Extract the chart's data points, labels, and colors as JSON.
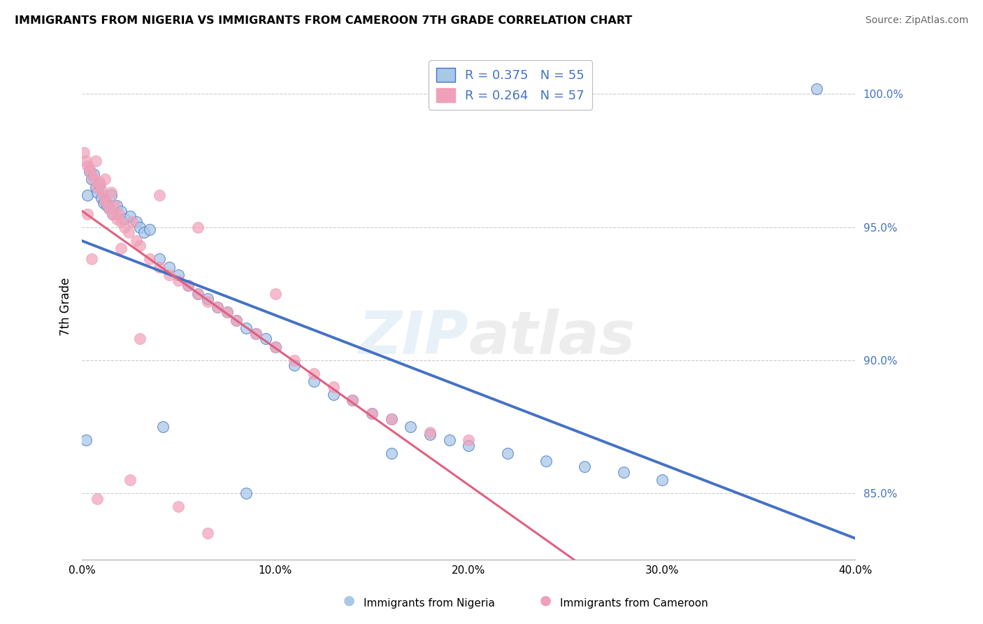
{
  "title": "IMMIGRANTS FROM NIGERIA VS IMMIGRANTS FROM CAMEROON 7TH GRADE CORRELATION CHART",
  "source": "Source: ZipAtlas.com",
  "ylabel": "7th Grade",
  "xlim": [
    0.0,
    40.0
  ],
  "ylim": [
    82.5,
    101.5
  ],
  "legend_nigeria": "Immigrants from Nigeria",
  "legend_cameroon": "Immigrants from Cameroon",
  "R_nigeria": 0.375,
  "N_nigeria": 55,
  "R_cameroon": 0.264,
  "N_cameroon": 57,
  "color_nigeria": "#a8c8e8",
  "color_cameroon": "#f0a0b8",
  "line_color_nigeria": "#4472c4",
  "line_color_cameroon": "#e06080",
  "watermark_zip": "ZIP",
  "watermark_atlas": "atlas",
  "nigeria_points": [
    [
      0.3,
      96.2
    ],
    [
      0.4,
      97.1
    ],
    [
      0.5,
      96.8
    ],
    [
      0.6,
      97.0
    ],
    [
      0.7,
      96.5
    ],
    [
      0.8,
      96.3
    ],
    [
      0.9,
      96.6
    ],
    [
      1.0,
      96.1
    ],
    [
      1.1,
      95.9
    ],
    [
      1.2,
      96.0
    ],
    [
      1.3,
      95.8
    ],
    [
      1.4,
      95.7
    ],
    [
      1.5,
      96.2
    ],
    [
      1.6,
      95.5
    ],
    [
      1.8,
      95.8
    ],
    [
      2.0,
      95.6
    ],
    [
      2.2,
      95.3
    ],
    [
      2.5,
      95.4
    ],
    [
      2.8,
      95.2
    ],
    [
      3.0,
      95.0
    ],
    [
      3.2,
      94.8
    ],
    [
      3.5,
      94.9
    ],
    [
      4.0,
      93.8
    ],
    [
      4.5,
      93.5
    ],
    [
      5.0,
      93.2
    ],
    [
      5.5,
      92.8
    ],
    [
      6.0,
      92.5
    ],
    [
      6.5,
      92.3
    ],
    [
      7.0,
      92.0
    ],
    [
      7.5,
      91.8
    ],
    [
      8.0,
      91.5
    ],
    [
      8.5,
      91.2
    ],
    [
      9.0,
      91.0
    ],
    [
      9.5,
      90.8
    ],
    [
      10.0,
      90.5
    ],
    [
      11.0,
      89.8
    ],
    [
      12.0,
      89.2
    ],
    [
      13.0,
      88.7
    ],
    [
      14.0,
      88.5
    ],
    [
      15.0,
      88.0
    ],
    [
      16.0,
      87.8
    ],
    [
      17.0,
      87.5
    ],
    [
      18.0,
      87.2
    ],
    [
      19.0,
      87.0
    ],
    [
      20.0,
      86.8
    ],
    [
      22.0,
      86.5
    ],
    [
      24.0,
      86.2
    ],
    [
      26.0,
      86.0
    ],
    [
      28.0,
      85.8
    ],
    [
      30.0,
      85.5
    ],
    [
      0.2,
      87.0
    ],
    [
      4.2,
      87.5
    ],
    [
      8.5,
      85.0
    ],
    [
      16.0,
      86.5
    ],
    [
      38.0,
      100.2
    ]
  ],
  "cameroon_points": [
    [
      0.1,
      97.8
    ],
    [
      0.2,
      97.5
    ],
    [
      0.3,
      97.3
    ],
    [
      0.4,
      97.2
    ],
    [
      0.5,
      97.0
    ],
    [
      0.6,
      96.8
    ],
    [
      0.7,
      97.5
    ],
    [
      0.8,
      96.5
    ],
    [
      0.9,
      96.7
    ],
    [
      1.0,
      96.4
    ],
    [
      1.1,
      96.2
    ],
    [
      1.2,
      96.0
    ],
    [
      1.3,
      95.9
    ],
    [
      1.4,
      95.7
    ],
    [
      1.5,
      96.3
    ],
    [
      1.6,
      95.5
    ],
    [
      1.7,
      95.8
    ],
    [
      1.8,
      95.3
    ],
    [
      1.9,
      95.5
    ],
    [
      2.0,
      95.2
    ],
    [
      2.2,
      95.0
    ],
    [
      2.4,
      94.8
    ],
    [
      2.6,
      95.2
    ],
    [
      2.8,
      94.5
    ],
    [
      3.0,
      94.3
    ],
    [
      3.5,
      93.8
    ],
    [
      4.0,
      93.5
    ],
    [
      4.5,
      93.2
    ],
    [
      5.0,
      93.0
    ],
    [
      5.5,
      92.8
    ],
    [
      6.0,
      92.5
    ],
    [
      6.5,
      92.2
    ],
    [
      7.0,
      92.0
    ],
    [
      7.5,
      91.8
    ],
    [
      8.0,
      91.5
    ],
    [
      9.0,
      91.0
    ],
    [
      10.0,
      90.5
    ],
    [
      11.0,
      90.0
    ],
    [
      12.0,
      89.5
    ],
    [
      13.0,
      89.0
    ],
    [
      14.0,
      88.5
    ],
    [
      15.0,
      88.0
    ],
    [
      16.0,
      87.8
    ],
    [
      18.0,
      87.3
    ],
    [
      20.0,
      87.0
    ],
    [
      0.3,
      95.5
    ],
    [
      0.5,
      93.8
    ],
    [
      1.2,
      96.8
    ],
    [
      2.0,
      94.2
    ],
    [
      3.0,
      90.8
    ],
    [
      4.0,
      96.2
    ],
    [
      6.0,
      95.0
    ],
    [
      10.0,
      92.5
    ],
    [
      2.5,
      85.5
    ],
    [
      5.0,
      84.5
    ],
    [
      0.8,
      84.8
    ],
    [
      6.5,
      83.5
    ]
  ],
  "yticks": [
    85.0,
    90.0,
    95.0,
    100.0
  ],
  "ytick_labels": [
    "85.0%",
    "90.0%",
    "95.0%",
    "100.0%"
  ],
  "xticks": [
    0.0,
    10.0,
    20.0,
    30.0,
    40.0
  ],
  "xtick_labels": [
    "0.0%",
    "10.0%",
    "20.0%",
    "30.0%",
    "40.0%"
  ]
}
